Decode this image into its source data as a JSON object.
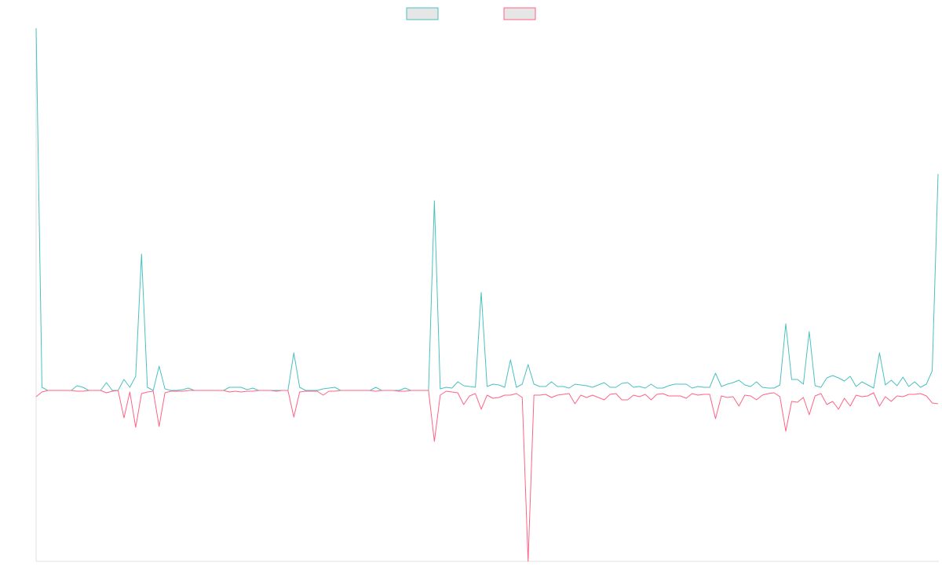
{
  "chart_data": {
    "type": "line",
    "categories": [
      null,
      null,
      null,
      null,
      null,
      null,
      null,
      null,
      null,
      null,
      null,
      null,
      null,
      null,
      null,
      null,
      null,
      null,
      null,
      null,
      null,
      null,
      null,
      null,
      null,
      null,
      null,
      null,
      null,
      null,
      null,
      null,
      null,
      null,
      null,
      null,
      null,
      null,
      null,
      null,
      null,
      null,
      null,
      null,
      null,
      null,
      null,
      null,
      null,
      null,
      null,
      null,
      null,
      null,
      null,
      null,
      null,
      null,
      null,
      null,
      null,
      null,
      null,
      null,
      null,
      null,
      null,
      null,
      null,
      null,
      null,
      null,
      null,
      null,
      null,
      null,
      null,
      null,
      null,
      null,
      null,
      null,
      null,
      null,
      null,
      null,
      null,
      null,
      null,
      null,
      null,
      null,
      null,
      null,
      null,
      null,
      null,
      null,
      null,
      null,
      null,
      null,
      null,
      null,
      null,
      null,
      null,
      null,
      null,
      null,
      null,
      null,
      null,
      null,
      null,
      null,
      null,
      null,
      null,
      null,
      null,
      null,
      null,
      null,
      null,
      null,
      null,
      null,
      null,
      null,
      null,
      null,
      null,
      null,
      null,
      null,
      null,
      null,
      null,
      null,
      null,
      null,
      null,
      null,
      null,
      null,
      null,
      null,
      null,
      null,
      null,
      null,
      null,
      null,
      null
    ],
    "series": [
      {
        "color": "#4bc0c0",
        "values": [
          462,
          4,
          0,
          0,
          0,
          0,
          0,
          6,
          4,
          0,
          0,
          0,
          10,
          0,
          0,
          14,
          4,
          18,
          174,
          4,
          0,
          31,
          2,
          0,
          0,
          1,
          3,
          0,
          0,
          0,
          0,
          0,
          0,
          4,
          4,
          4,
          1,
          3,
          0,
          0,
          0,
          0,
          0,
          0,
          48,
          4,
          0,
          0,
          0,
          2,
          3,
          4,
          0,
          0,
          0,
          0,
          0,
          0,
          4,
          0,
          0,
          0,
          0,
          3,
          0,
          0,
          0,
          0,
          242,
          2,
          4,
          3,
          11,
          6,
          5,
          4,
          125,
          5,
          8,
          7,
          4,
          39,
          4,
          8,
          33,
          8,
          5,
          5,
          11,
          5,
          5,
          3,
          8,
          7,
          6,
          4,
          7,
          10,
          4,
          4,
          9,
          10,
          4,
          5,
          3,
          8,
          3,
          3,
          6,
          8,
          8,
          8,
          3,
          5,
          4,
          4,
          22,
          5,
          8,
          10,
          13,
          7,
          5,
          11,
          4,
          3,
          3,
          7,
          85,
          14,
          14,
          8,
          75,
          6,
          4,
          16,
          19,
          16,
          12,
          18,
          5,
          11,
          7,
          3,
          48,
          7,
          13,
          6,
          17,
          5,
          11,
          4,
          8,
          25,
          276
        ]
      },
      {
        "color": "#ff6384",
        "values": [
          -8,
          -2,
          0,
          0,
          0,
          0,
          0,
          -1,
          -1,
          0,
          0,
          0,
          -3,
          -1,
          0,
          -35,
          -2,
          -47,
          -4,
          -2,
          -1,
          -46,
          -3,
          -1,
          -1,
          -1,
          0,
          0,
          0,
          0,
          0,
          0,
          0,
          -2,
          -1,
          -2,
          -1,
          -1,
          0,
          0,
          0,
          -1,
          0,
          0,
          -34,
          -2,
          -1,
          -1,
          -1,
          -6,
          -1,
          -1,
          0,
          0,
          0,
          0,
          0,
          0,
          -1,
          0,
          0,
          0,
          -1,
          -1,
          0,
          0,
          0,
          0,
          -65,
          -6,
          -1,
          -2,
          -3,
          -18,
          -7,
          -4,
          -24,
          -6,
          -10,
          -9,
          -6,
          -6,
          -4,
          -9,
          -218,
          -6,
          -6,
          -5,
          -9,
          -6,
          -5,
          -4,
          -17,
          -6,
          -9,
          -6,
          -9,
          -12,
          -5,
          -4,
          -12,
          -12,
          -6,
          -8,
          -5,
          -12,
          -5,
          -4,
          -7,
          -7,
          -7,
          -10,
          -4,
          -6,
          -5,
          -5,
          -36,
          -7,
          -9,
          -8,
          -20,
          -6,
          -7,
          -12,
          -6,
          -4,
          -3,
          -8,
          -52,
          -14,
          -15,
          -9,
          -31,
          -7,
          -4,
          -18,
          -14,
          -24,
          -10,
          -20,
          -6,
          -8,
          -7,
          -3,
          -20,
          -8,
          -14,
          -7,
          -8,
          -5,
          -5,
          -4,
          -7,
          -16,
          -17
        ]
      }
    ],
    "ylim": [
      -218,
      462
    ],
    "legend": "top"
  }
}
